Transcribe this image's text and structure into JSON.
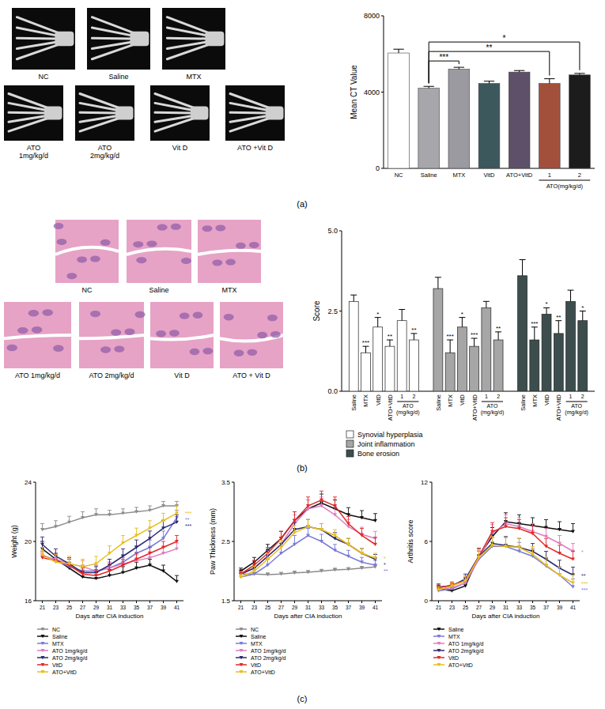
{
  "panel_labels": [
    "(a)",
    "(b)",
    "(c)"
  ],
  "image_panels": [
    {
      "labels": [
        [
          "NC"
        ],
        [
          "Saline"
        ],
        [
          "MTX"
        ],
        [
          "ATO",
          "1mg/kg/d"
        ],
        [
          "ATO",
          "2mg/kg/d"
        ],
        [
          "Vit D"
        ],
        [
          "ATO +Vit D"
        ]
      ]
    },
    {
      "labels": [
        [
          "NC"
        ],
        [
          "Saline"
        ],
        [
          "MTX"
        ],
        [
          "ATO 1mg/kg/d"
        ],
        [
          "ATO  2mg/kg/d"
        ],
        [
          "Vit D"
        ],
        [
          "ATO + Vit D"
        ]
      ]
    }
  ],
  "chart_data": [
    {
      "type": "bar",
      "y_label": "Mean CT Value",
      "categories": [
        "NC",
        "Saline",
        "MTX",
        "VitD",
        "ATO+VitD",
        "1",
        "2"
      ],
      "values": [
        6050,
        4200,
        5200,
        4450,
        5050,
        4450,
        4900
      ],
      "errors": [
        200,
        100,
        100,
        120,
        80,
        250,
        80
      ],
      "colors": [
        "#ffffff",
        "#a7a7ab",
        "#9a9aa0",
        "#3d585c",
        "#5e5068",
        "#a2503c",
        "#1c1c1c"
      ],
      "group_label": "ATO(mg/kg/d)",
      "group_categories": [
        "1",
        "2"
      ],
      "ylim": [
        0,
        8000
      ],
      "yticks": [
        0,
        4000,
        8000
      ],
      "grid": false,
      "comparisons": [
        {
          "categories": [
            "Saline",
            "MTX"
          ],
          "label": "***"
        },
        {
          "categories": [
            "Saline",
            "1"
          ],
          "label": "**"
        },
        {
          "categories": [
            "Saline",
            "2"
          ],
          "label": "*"
        }
      ]
    },
    {
      "type": "bar",
      "y_label": "Score",
      "categories": [
        "Saline",
        "MTX",
        "VitD",
        "ATO+VitD",
        "1",
        "2"
      ],
      "group_label": [
        "ATO",
        "(mg/kg/d)"
      ],
      "group_categories": [
        "1",
        "2"
      ],
      "ylim": [
        0,
        5
      ],
      "yticks": [
        {
          "value": 0,
          "label": "0.0"
        },
        2.5,
        {
          "value": 5,
          "label": "5.0"
        }
      ],
      "grid": false,
      "legend": "bottom",
      "series": [
        {
          "name": "Synovial hyperplasia",
          "color": "#ffffff",
          "values": [
            2.8,
            1.2,
            2.0,
            1.4,
            2.2,
            1.6
          ],
          "errors": [
            0.2,
            0.2,
            0.3,
            0.2,
            0.35,
            0.2
          ],
          "significance": [
            null,
            "***",
            "*",
            "**",
            null,
            "**"
          ]
        },
        {
          "name": "Joint inflammation",
          "color": "#a6a6a6",
          "values": [
            3.2,
            1.2,
            2.0,
            1.4,
            2.6,
            1.6
          ],
          "errors": [
            0.35,
            0.4,
            0.3,
            0.25,
            0.2,
            0.25
          ],
          "significance": [
            null,
            "***",
            "*",
            "***",
            null,
            "**"
          ]
        },
        {
          "name": "Bone erosion",
          "color": "#3d4d4d",
          "values": [
            3.6,
            1.6,
            2.4,
            1.8,
            2.8,
            2.2
          ],
          "errors": [
            0.5,
            0.4,
            0.2,
            0.4,
            0.35,
            0.3
          ],
          "significance": [
            null,
            "***",
            "*",
            "**",
            null,
            "*"
          ]
        }
      ]
    },
    {
      "type": "line",
      "y_label": "Weight (g)",
      "x_label": "Days after CIA induction",
      "x": [
        21,
        23,
        25,
        27,
        29,
        31,
        33,
        35,
        37,
        39,
        41
      ],
      "xlim": [
        20,
        42
      ],
      "xticks": [
        21,
        23,
        25,
        27,
        29,
        31,
        33,
        35,
        37,
        39,
        41
      ],
      "ylim": [
        16,
        24
      ],
      "yticks": [
        16,
        20,
        24
      ],
      "grid": false,
      "legend": "bottom",
      "marker": "triangle",
      "line_style": "solid",
      "series": [
        {
          "name": "NC",
          "color": "#8c8c8c",
          "values": [
            20.8,
            21.0,
            21.3,
            21.6,
            21.8,
            21.8,
            21.9,
            22.0,
            22.1,
            22.4,
            22.4
          ],
          "errors": [
            0.4,
            0.4,
            0.4,
            0.4,
            0.4,
            0.3,
            0.3,
            0.3,
            0.3,
            0.3,
            0.3
          ]
        },
        {
          "name": "Saline",
          "color": "#111111",
          "values": [
            19.5,
            18.8,
            18.2,
            17.6,
            17.5,
            17.7,
            17.9,
            18.2,
            18.4,
            18.0,
            17.3
          ],
          "errors": [
            0.5,
            0.4,
            0.4,
            0.4,
            0.4,
            0.4,
            0.4,
            0.4,
            0.4,
            0.4,
            0.4
          ]
        },
        {
          "name": "MTX",
          "color": "#7b7bd8",
          "values": [
            19.1,
            18.7,
            18.3,
            18.0,
            18.0,
            18.2,
            18.6,
            19.2,
            19.6,
            20.2,
            21.6
          ],
          "errors": [
            0.5,
            0.5,
            0.5,
            0.4,
            0.4,
            0.4,
            0.5,
            0.5,
            0.5,
            0.5,
            0.5
          ],
          "significance": "**"
        },
        {
          "name": "ATO 1mg/kg/d",
          "color": "#e07cc0",
          "values": [
            19.0,
            18.8,
            18.5,
            18.3,
            18.0,
            18.2,
            18.5,
            18.7,
            18.9,
            19.2,
            19.5
          ],
          "errors": [
            0.4,
            0.4,
            0.4,
            0.4,
            0.4,
            0.4,
            0.4,
            0.4,
            0.4,
            0.4,
            0.4
          ]
        },
        {
          "name": "ATO 2mg/kg/d",
          "color": "#2b2b70",
          "values": [
            19.8,
            19.0,
            18.5,
            17.9,
            17.9,
            18.4,
            19.0,
            19.6,
            20.2,
            20.9,
            21.3
          ],
          "errors": [
            0.5,
            0.5,
            0.4,
            0.4,
            0.4,
            0.4,
            0.5,
            0.5,
            0.5,
            0.5,
            0.5
          ],
          "significance": "***"
        },
        {
          "name": "VitD",
          "color": "#e02a2a",
          "values": [
            18.9,
            18.7,
            18.4,
            17.8,
            17.7,
            18.0,
            18.4,
            18.8,
            19.2,
            19.6,
            20.0
          ],
          "errors": [
            0.4,
            0.4,
            0.4,
            0.4,
            0.4,
            0.4,
            0.4,
            0.4,
            0.4,
            0.4,
            0.4
          ]
        },
        {
          "name": "ATO+VitD",
          "color": "#e8be1c",
          "values": [
            19.1,
            18.6,
            18.5,
            18.3,
            18.5,
            19.2,
            19.9,
            20.4,
            20.9,
            21.4,
            21.9
          ],
          "errors": [
            0.5,
            0.5,
            0.5,
            0.5,
            0.5,
            0.5,
            0.5,
            0.5,
            0.5,
            0.5,
            0.5
          ],
          "significance": "***"
        }
      ]
    },
    {
      "type": "line",
      "y_label": "Paw Thickness (mm)",
      "x_label": "Days after CIA induction",
      "x": [
        21,
        23,
        25,
        27,
        29,
        31,
        33,
        35,
        37,
        39,
        41
      ],
      "xlim": [
        20,
        42
      ],
      "xticks": [
        21,
        23,
        25,
        27,
        29,
        31,
        33,
        35,
        37,
        39,
        41
      ],
      "ylim": [
        1.5,
        3.5
      ],
      "yticks": [
        1.5,
        2.5,
        3.5
      ],
      "grid": false,
      "legend": "bottom",
      "marker": "triangle",
      "line_style": "solid",
      "series": [
        {
          "name": "NC",
          "color": "#8c8c8c",
          "values": [
            1.95,
            1.95,
            1.94,
            1.95,
            1.97,
            1.98,
            2.0,
            2.02,
            2.03,
            2.05,
            2.07
          ],
          "errors": [
            0.03,
            0.03,
            0.03,
            0.03,
            0.03,
            0.03,
            0.03,
            0.03,
            0.03,
            0.03,
            0.03
          ]
        },
        {
          "name": "Saline",
          "color": "#111111",
          "values": [
            2.0,
            2.15,
            2.35,
            2.55,
            2.85,
            3.05,
            3.15,
            3.05,
            2.95,
            2.9,
            2.85
          ],
          "errors": [
            0.05,
            0.08,
            0.1,
            0.12,
            0.15,
            0.15,
            0.15,
            0.15,
            0.12,
            0.12,
            0.12
          ]
        },
        {
          "name": "MTX",
          "color": "#7b7bd8",
          "values": [
            1.9,
            1.95,
            2.1,
            2.3,
            2.45,
            2.6,
            2.5,
            2.35,
            2.25,
            2.15,
            2.1
          ],
          "errors": [
            0.05,
            0.07,
            0.1,
            0.12,
            0.15,
            0.12,
            0.12,
            0.1,
            0.1,
            0.08,
            0.08
          ],
          "significance": "**"
        },
        {
          "name": "ATO 1mg/kg/d",
          "color": "#e07cc0",
          "values": [
            1.95,
            2.05,
            2.25,
            2.45,
            2.8,
            3.05,
            3.1,
            2.95,
            2.75,
            2.62,
            2.55
          ],
          "errors": [
            0.05,
            0.08,
            0.1,
            0.12,
            0.15,
            0.15,
            0.15,
            0.15,
            0.12,
            0.12,
            0.12
          ]
        },
        {
          "name": "ATO 2mg/kg/d",
          "color": "#2b2b70",
          "values": [
            1.95,
            2.05,
            2.25,
            2.45,
            2.7,
            2.75,
            2.7,
            2.55,
            2.45,
            2.3,
            2.2
          ],
          "errors": [
            0.05,
            0.08,
            0.1,
            0.12,
            0.12,
            0.12,
            0.1,
            0.1,
            0.1,
            0.08,
            0.08
          ],
          "significance": "*"
        },
        {
          "name": "VitD",
          "color": "#e02a2a",
          "values": [
            1.95,
            2.1,
            2.3,
            2.55,
            2.85,
            3.1,
            3.2,
            3.1,
            2.8,
            2.6,
            2.45
          ],
          "errors": [
            0.05,
            0.08,
            0.1,
            0.12,
            0.15,
            0.15,
            0.15,
            0.15,
            0.12,
            0.12,
            0.12
          ]
        },
        {
          "name": "ATO+VitD",
          "color": "#e8be1c",
          "values": [
            1.9,
            2.0,
            2.2,
            2.4,
            2.65,
            2.75,
            2.7,
            2.6,
            2.45,
            2.3,
            2.22
          ],
          "errors": [
            0.05,
            0.08,
            0.1,
            0.12,
            0.12,
            0.12,
            0.1,
            0.1,
            0.1,
            0.08,
            0.08
          ],
          "significance": "*"
        }
      ]
    },
    {
      "type": "line",
      "y_label": "Arthritis score",
      "x_label": "Days after CIA induction",
      "x": [
        21,
        23,
        25,
        27,
        29,
        31,
        33,
        35,
        37,
        39,
        41
      ],
      "xlim": [
        20,
        42
      ],
      "xticks": [
        21,
        23,
        25,
        27,
        29,
        31,
        33,
        35,
        37,
        39,
        41
      ],
      "ylim": [
        0,
        12
      ],
      "yticks": [
        0,
        6,
        12
      ],
      "grid": false,
      "legend": "bottom",
      "marker": "triangle",
      "line_style": "solid",
      "series": [
        {
          "name": "Saline",
          "color": "#111111",
          "values": [
            1.2,
            1.0,
            1.5,
            4.5,
            6.5,
            8.0,
            7.8,
            7.6,
            7.4,
            7.2,
            7.0
          ],
          "errors": [
            0.3,
            0.3,
            0.5,
            0.8,
            0.9,
            0.9,
            0.9,
            0.8,
            0.8,
            0.8,
            0.8
          ]
        },
        {
          "name": "MTX",
          "color": "#7b7bd8",
          "values": [
            1.0,
            1.2,
            1.8,
            4.2,
            5.5,
            5.5,
            5.0,
            4.5,
            3.5,
            2.6,
            1.4
          ],
          "errors": [
            0.3,
            0.3,
            0.5,
            0.8,
            0.9,
            0.9,
            0.9,
            0.8,
            0.8,
            0.8,
            0.8
          ],
          "significance": "***"
        },
        {
          "name": "ATO 1mg/kg/d",
          "color": "#e07cc0",
          "values": [
            1.2,
            1.3,
            1.8,
            4.3,
            6.8,
            7.8,
            7.5,
            7.0,
            6.5,
            5.8,
            5.0
          ],
          "errors": [
            0.3,
            0.3,
            0.5,
            0.8,
            0.9,
            0.9,
            0.9,
            0.8,
            0.8,
            0.8,
            0.8
          ],
          "significance": "*"
        },
        {
          "name": "ATO 2mg/kg/d",
          "color": "#2b2b70",
          "values": [
            1.4,
            1.5,
            2.2,
            4.5,
            5.8,
            5.6,
            5.4,
            5.0,
            4.2,
            3.3,
            2.6
          ],
          "errors": [
            0.3,
            0.3,
            0.5,
            0.8,
            0.9,
            0.9,
            0.9,
            0.8,
            0.8,
            0.8,
            0.8
          ],
          "significance": "**"
        },
        {
          "name": "VitD",
          "color": "#e02a2a",
          "values": [
            1.3,
            1.6,
            2.0,
            4.5,
            7.0,
            7.5,
            7.3,
            6.8,
            5.5,
            4.8,
            4.2
          ],
          "errors": [
            0.3,
            0.3,
            0.5,
            0.8,
            0.9,
            0.9,
            0.9,
            0.8,
            0.8,
            0.8,
            0.8
          ]
        },
        {
          "name": "ATO+VitD",
          "color": "#e8be1c",
          "values": [
            1.1,
            1.5,
            2.0,
            4.4,
            5.6,
            5.5,
            5.4,
            4.7,
            3.6,
            2.6,
            1.8
          ],
          "errors": [
            0.3,
            0.3,
            0.5,
            0.8,
            0.9,
            0.9,
            0.9,
            0.8,
            0.8,
            0.8,
            0.8
          ],
          "significance": "***"
        }
      ]
    }
  ]
}
